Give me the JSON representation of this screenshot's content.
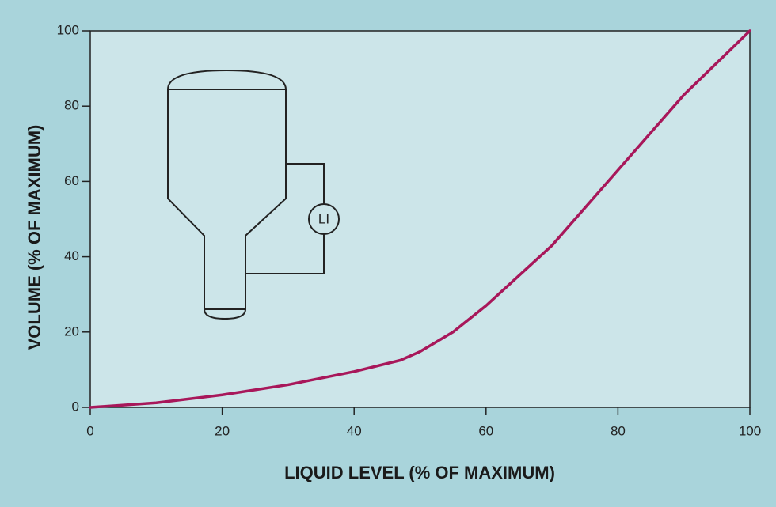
{
  "chart_data": {
    "type": "line",
    "x_label": "LIQUID LEVEL (% OF MAXIMUM)",
    "y_label": "VOLUME (% OF MAXIMUM)",
    "annotation": "LI",
    "x": [
      0,
      10,
      20,
      30,
      40,
      47,
      50,
      55,
      60,
      70,
      80,
      90,
      100
    ],
    "series": [
      {
        "color": "#a8175a",
        "values": [
          0,
          1.2,
          3.3,
          6,
          9.5,
          12.5,
          14.8,
          20,
          27,
          43,
          63,
          83,
          100
        ]
      }
    ],
    "xlim": [
      0,
      100
    ],
    "xticks": [
      0,
      20,
      40,
      60,
      80,
      100
    ],
    "ylim": [
      0,
      100
    ],
    "yticks": [
      0,
      20,
      40,
      60,
      80,
      100
    ]
  }
}
